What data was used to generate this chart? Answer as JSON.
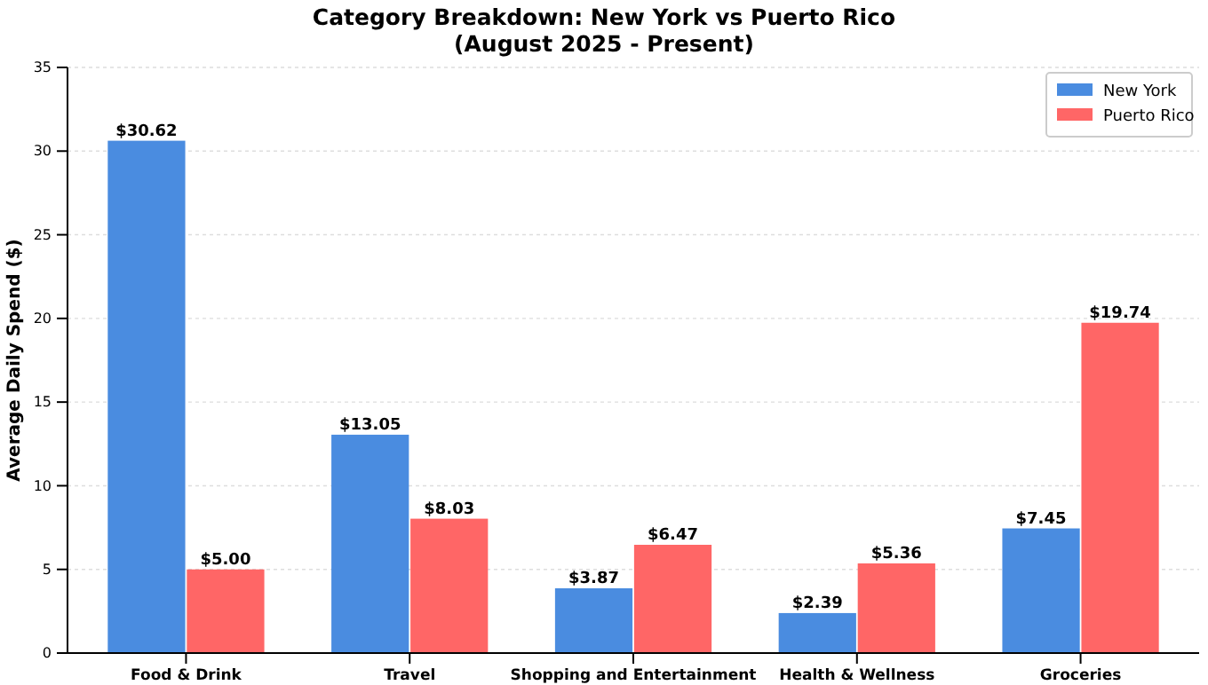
{
  "chart_data": {
    "type": "bar",
    "title": "Category Breakdown: New York vs Puerto Rico",
    "subtitle": "(August 2025 - Present)",
    "ylabel": "Average Daily Spend ($)",
    "categories": [
      "Food & Drink",
      "Travel",
      "Shopping and Entertainment",
      "Health & Wellness",
      "Groceries"
    ],
    "series": [
      {
        "name": "New York",
        "color": "#4a8ce0",
        "values": [
          30.62,
          13.05,
          3.87,
          2.39,
          7.45
        ],
        "value_labels": [
          "$30.62",
          "$13.05",
          "$3.87",
          "$2.39",
          "$7.45"
        ]
      },
      {
        "name": "Puerto Rico",
        "color": "#ff6666",
        "values": [
          5.0,
          8.03,
          6.47,
          5.36,
          19.74
        ],
        "value_labels": [
          "$5.00",
          "$8.03",
          "$6.47",
          "$5.36",
          "$19.74"
        ]
      }
    ],
    "ylim": [
      0,
      35
    ],
    "yticks": [
      0,
      5,
      10,
      15,
      20,
      25,
      30,
      35
    ],
    "grid": "y",
    "legend": "top right"
  }
}
